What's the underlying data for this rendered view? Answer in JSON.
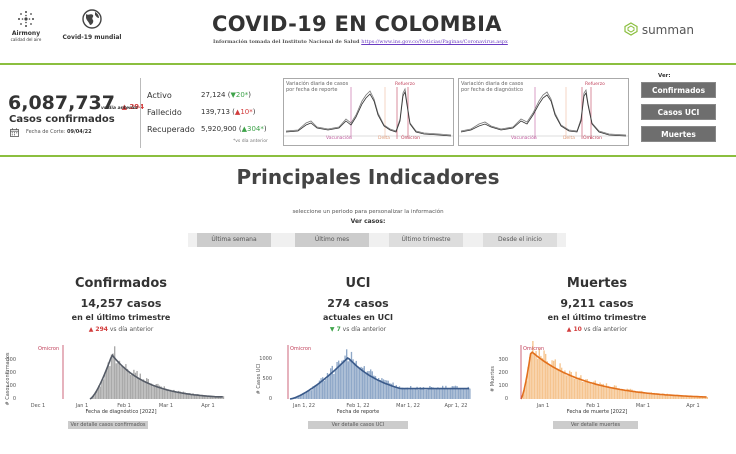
{
  "header": {
    "airmony_label_1": "Airmony",
    "airmony_label_2": "calidad del aire",
    "mundial_label": "Covid-19 mundial",
    "title": "COVID-19 EN COLOMBIA",
    "source_text": "Información tomada del Instituto Nacional de Salud",
    "source_link": "https://www.ins.gov.co/Noticias/Paginas/Coronavirus.aspx",
    "logo_text": "summan",
    "colors": {
      "accent_bar": "#8bbf3f",
      "red": "#d23c3c",
      "green": "#3ea34a"
    }
  },
  "summary": {
    "total": "6,087,737",
    "total_delta": "294",
    "vs_label_1": "vs día",
    "vs_label_2": "anterior",
    "total_label": "Casos confirmados",
    "corte_label": "Fecha de Corte:",
    "corte_date": "09/04/22",
    "activo_label": "Activo",
    "activo_value": "27,124",
    "activo_delta": "20*",
    "fallecido_label": "Fallecido",
    "fallecido_value": "139,713",
    "fallecido_delta": "10*",
    "recuperado_label": "Recuperado",
    "recuperado_value": "5,920,900",
    "recuperado_delta": "304*",
    "note": "*vs día anterior"
  },
  "mini_charts": [
    {
      "caption_1": "Variación diaria de casos",
      "caption_2": "por fecha de reporte",
      "labels": [
        "Vacunación",
        "Delta",
        "Ómicron",
        "Refuerzo"
      ]
    },
    {
      "caption_1": "Variación diaria de casos",
      "caption_2": "por fecha de diagnóstico",
      "labels": [
        "Vacunación",
        "Delta",
        "Ómicron",
        "Refuerzo"
      ]
    }
  ],
  "ver": {
    "title": "Ver:",
    "buttons": [
      "Confirmados",
      "Casos UCI",
      "Muertes"
    ]
  },
  "section": {
    "title": "Principales Indicadores",
    "hint": "seleccione un periodo para personalizar la información",
    "ver_casos": "Ver casos:",
    "periods": [
      "Última semana",
      "Último mes",
      "Último trimestre",
      "Desde el inicio"
    ]
  },
  "panels": [
    {
      "title": "Confirmados",
      "value": "14,257 casos",
      "subtitle": "en el último trimestre",
      "delta": "294",
      "delta_dir": "up",
      "vs_text": "vs día anterior",
      "ylabel": "# Casos confirmados",
      "xlabel": "Fecha de diagnóstico [2022]",
      "omicron": "Omicron",
      "yticks": [
        "300",
        "200",
        "100",
        "0"
      ],
      "xticks": [
        "Dec 1",
        "Jan 1",
        "Feb 1",
        "Mar 1",
        "Apr 1"
      ],
      "button": "Ver detalle casos confirmados",
      "color": "#a9a9a9",
      "line_color": "#555b66"
    },
    {
      "title": "UCI",
      "value": "274 casos",
      "subtitle": "actuales en UCI",
      "delta": "7",
      "delta_dir": "down",
      "vs_text": "vs día anterior",
      "ylabel": "# Casos UCI",
      "xlabel": "Fecha de reporte",
      "omicron": "Omicron",
      "yticks": [
        "1000",
        "500",
        "0"
      ],
      "xticks": [
        "Jan 1, 22",
        "Feb 1, 22",
        "Mar 1, 22",
        "Apr 1, 22"
      ],
      "button": "Ver detalle casos UCI",
      "color": "#8fa8c8",
      "line_color": "#3a5a8a"
    },
    {
      "title": "Muertes",
      "value": "9,211 casos",
      "subtitle": "en el último trimestre",
      "delta": "10",
      "delta_dir": "up",
      "vs_text": "vs día anterior",
      "ylabel": "# Muertes",
      "xlabel": "Fecha de muerte [2022]",
      "omicron": "Omicron",
      "yticks": [
        "300",
        "200",
        "100",
        "0"
      ],
      "xticks": [
        "Jan 1",
        "Feb 1",
        "Mar 1",
        "Apr 1"
      ],
      "button": "Ver detalle muertes",
      "color": "#f5c48f",
      "line_color": "#e2701c"
    }
  ]
}
